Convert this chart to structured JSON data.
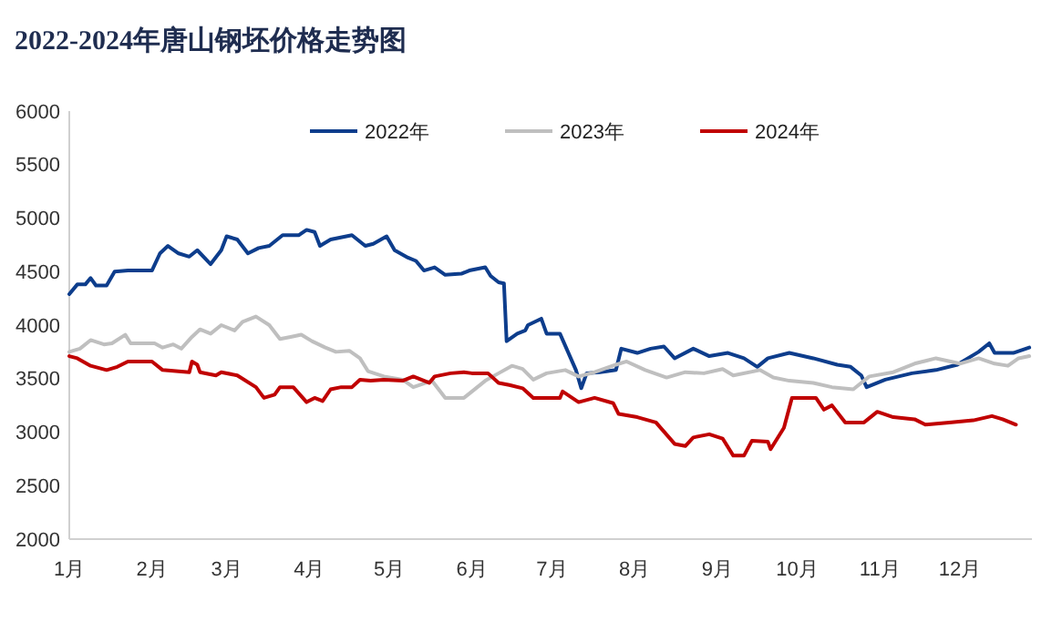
{
  "chart_data": {
    "type": "line",
    "title": "2022-2024年唐山钢坯价格走势图",
    "legend": "top",
    "grid": false,
    "xlim": [
      "--01-01",
      "--12-28"
    ],
    "xticks": [
      {
        "value": "--01-01",
        "label": "1月"
      },
      {
        "value": "--02-01",
        "label": "2月"
      },
      {
        "value": "--03-01",
        "label": "3月"
      },
      {
        "value": "--04-01",
        "label": "4月"
      },
      {
        "value": "--05-01",
        "label": "5月"
      },
      {
        "value": "--06-01",
        "label": "6月"
      },
      {
        "value": "--07-01",
        "label": "7月"
      },
      {
        "value": "--08-01",
        "label": "8月"
      },
      {
        "value": "--09-01",
        "label": "9月"
      },
      {
        "value": "--10-01",
        "label": "10月"
      },
      {
        "value": "--11-01",
        "label": "11月"
      },
      {
        "value": "--12-01",
        "label": "12月"
      }
    ],
    "ylim": [
      2000,
      6000
    ],
    "yticks": [
      2000,
      2500,
      3000,
      3500,
      4000,
      4500,
      5000,
      5500,
      6000
    ],
    "series": [
      {
        "name": "2022年",
        "color": "#0d3d8c",
        "x": [
          "--01-01",
          "--01-04",
          "--01-07",
          "--01-09",
          "--01-11",
          "--01-15",
          "--01-18",
          "--01-23",
          "--02-01",
          "--02-04",
          "--02-07",
          "--02-11",
          "--02-15",
          "--02-18",
          "--02-23",
          "--02-27",
          "--03-01",
          "--03-05",
          "--03-09",
          "--03-13",
          "--03-17",
          "--03-22",
          "--03-28",
          "--03-31",
          "--04-03",
          "--04-05",
          "--04-09",
          "--04-17",
          "--04-22",
          "--04-25",
          "--04-30",
          "--05-03",
          "--05-08",
          "--05-11",
          "--05-14",
          "--05-18",
          "--05-22",
          "--05-28",
          "--05-31",
          "--06-06",
          "--06-08",
          "--06-11",
          "--06-13",
          "--06-14",
          "--06-18",
          "--06-21",
          "--06-22",
          "--06-27",
          "--06-29",
          "--07-04",
          "--07-07",
          "--07-10",
          "--07-12",
          "--07-14",
          "--07-19",
          "--07-25",
          "--07-27",
          "--08-02",
          "--08-07",
          "--08-12",
          "--08-16",
          "--08-23",
          "--08-29",
          "--09-05",
          "--09-11",
          "--09-16",
          "--09-20",
          "--09-28",
          "--10-07",
          "--10-16",
          "--10-21",
          "--10-25",
          "--10-27",
          "--11-03",
          "--11-13",
          "--11-22",
          "--11-30",
          "--12-08",
          "--12-12",
          "--12-14",
          "--12-21",
          "--12-27"
        ],
        "values": [
          4290,
          4380,
          4380,
          4440,
          4370,
          4370,
          4500,
          4510,
          4510,
          4670,
          4740,
          4670,
          4640,
          4700,
          4570,
          4700,
          4830,
          4800,
          4670,
          4720,
          4740,
          4840,
          4840,
          4890,
          4870,
          4740,
          4800,
          4840,
          4740,
          4760,
          4830,
          4700,
          4630,
          4600,
          4510,
          4540,
          4470,
          4480,
          4510,
          4540,
          4460,
          4400,
          4390,
          3850,
          3920,
          3950,
          4000,
          4060,
          3920,
          3920,
          3750,
          3580,
          3410,
          3550,
          3560,
          3580,
          3780,
          3740,
          3780,
          3800,
          3690,
          3780,
          3710,
          3740,
          3690,
          3610,
          3690,
          3740,
          3690,
          3630,
          3610,
          3530,
          3420,
          3490,
          3550,
          3580,
          3630,
          3750,
          3830,
          3740,
          3740,
          3790
        ]
      },
      {
        "name": "2023年",
        "color": "#bfbfbf",
        "x": [
          "--01-01",
          "--01-05",
          "--01-09",
          "--01-14",
          "--01-17",
          "--01-22",
          "--01-24",
          "--02-02",
          "--02-05",
          "--02-09",
          "--02-12",
          "--02-16",
          "--02-19",
          "--02-23",
          "--02-27",
          "--03-04",
          "--03-07",
          "--03-12",
          "--03-17",
          "--03-21",
          "--03-25",
          "--03-29",
          "--04-02",
          "--04-07",
          "--04-11",
          "--04-16",
          "--04-20",
          "--04-23",
          "--04-29",
          "--05-06",
          "--05-10",
          "--05-17",
          "--05-22",
          "--05-29",
          "--06-01",
          "--06-06",
          "--06-11",
          "--06-16",
          "--06-20",
          "--06-24",
          "--06-29",
          "--07-06",
          "--07-11",
          "--07-17",
          "--07-25",
          "--07-29",
          "--08-05",
          "--08-13",
          "--08-20",
          "--08-27",
          "--09-03",
          "--09-07",
          "--09-17",
          "--09-22",
          "--09-28",
          "--10-07",
          "--10-14",
          "--10-22",
          "--10-28",
          "--11-06",
          "--11-14",
          "--11-22",
          "--12-01",
          "--12-08",
          "--12-14",
          "--12-19",
          "--12-23",
          "--12-27"
        ],
        "values": [
          3750,
          3780,
          3860,
          3820,
          3830,
          3910,
          3830,
          3830,
          3790,
          3820,
          3780,
          3890,
          3960,
          3920,
          4000,
          3950,
          4030,
          4080,
          4000,
          3870,
          3890,
          3910,
          3850,
          3790,
          3750,
          3760,
          3690,
          3570,
          3520,
          3490,
          3420,
          3480,
          3320,
          3320,
          3380,
          3480,
          3550,
          3620,
          3590,
          3490,
          3550,
          3580,
          3520,
          3560,
          3630,
          3660,
          3580,
          3510,
          3560,
          3550,
          3590,
          3530,
          3580,
          3510,
          3480,
          3460,
          3420,
          3400,
          3520,
          3560,
          3640,
          3690,
          3640,
          3690,
          3640,
          3620,
          3690,
          3710
        ]
      },
      {
        "name": "2024年",
        "color": "#c00000",
        "x": [
          "--01-01",
          "--01-04",
          "--01-09",
          "--01-15",
          "--01-19",
          "--01-23",
          "--02-01",
          "--02-05",
          "--02-15",
          "--02-16",
          "--02-18",
          "--02-19",
          "--02-25",
          "--02-27",
          "--03-05",
          "--03-12",
          "--03-15",
          "--03-19",
          "--03-21",
          "--03-26",
          "--03-31",
          "--04-03",
          "--04-06",
          "--04-09",
          "--04-13",
          "--04-17",
          "--04-20",
          "--04-24",
          "--04-29",
          "--05-06",
          "--05-10",
          "--05-16",
          "--05-18",
          "--05-24",
          "--05-29",
          "--06-01",
          "--06-07",
          "--06-11",
          "--06-15",
          "--06-20",
          "--06-24",
          "--07-04",
          "--07-05",
          "--07-11",
          "--07-17",
          "--07-24",
          "--07-26",
          "--08-02",
          "--08-09",
          "--08-16",
          "--08-20",
          "--08-23",
          "--08-29",
          "--09-03",
          "--09-07",
          "--09-11",
          "--09-14",
          "--09-20",
          "--09-21",
          "--09-26",
          "--09-29",
          "--10-08",
          "--10-11",
          "--10-14",
          "--10-19",
          "--10-26",
          "--10-31",
          "--11-06",
          "--11-14",
          "--11-18",
          "--11-27",
          "--12-06",
          "--12-13",
          "--12-17",
          "--12-22"
        ],
        "values": [
          3710,
          3690,
          3620,
          3580,
          3610,
          3660,
          3660,
          3580,
          3560,
          3660,
          3630,
          3560,
          3530,
          3560,
          3530,
          3420,
          3320,
          3350,
          3420,
          3420,
          3280,
          3320,
          3290,
          3400,
          3420,
          3420,
          3490,
          3480,
          3490,
          3480,
          3520,
          3460,
          3520,
          3550,
          3560,
          3550,
          3550,
          3460,
          3440,
          3410,
          3320,
          3320,
          3380,
          3280,
          3320,
          3270,
          3170,
          3140,
          3090,
          2890,
          2870,
          2950,
          2980,
          2940,
          2780,
          2780,
          2920,
          2910,
          2840,
          3040,
          3320,
          3320,
          3210,
          3250,
          3090,
          3090,
          3190,
          3140,
          3120,
          3070,
          3090,
          3110,
          3150,
          3120,
          3070
        ]
      }
    ]
  }
}
